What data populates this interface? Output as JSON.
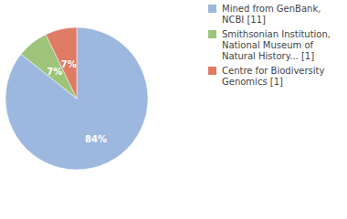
{
  "chart_data": {
    "type": "pie",
    "categories": [
      "Mined from GenBank, NCBI [11]",
      "Smithsonian Institution, National Museum of Natural History... [1]",
      "Centre for Biodiversity Genomics [1]"
    ],
    "values": [
      84,
      7,
      7
    ],
    "value_labels": [
      "84%",
      "7%",
      "7%"
    ],
    "colors": [
      "#9db8df",
      "#9ec47a",
      "#e07b66"
    ],
    "data_labels": true,
    "legend": "upper right"
  }
}
